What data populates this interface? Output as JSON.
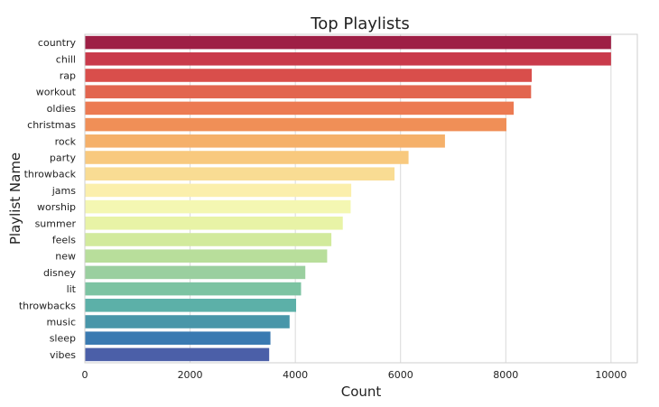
{
  "chart_data": {
    "type": "bar",
    "orientation": "horizontal",
    "title": "Top Playlists",
    "xlabel": "Count",
    "ylabel": "Playlist Name",
    "xlim": [
      0,
      10500
    ],
    "xticks": [
      0,
      2000,
      4000,
      6000,
      8000,
      10000
    ],
    "xtick_labels": [
      "0",
      "2000",
      "4000",
      "6000",
      "8000",
      "10000"
    ],
    "grid": true,
    "categories": [
      "country",
      "chill",
      "rap",
      "workout",
      "oldies",
      "christmas",
      "rock",
      "party",
      "throwback",
      "jams",
      "worship",
      "summer",
      "feels",
      "new",
      "disney",
      "lit",
      "throwbacks",
      "music",
      "sleep",
      "vibes"
    ],
    "values": [
      10000,
      10000,
      8493,
      8481,
      8150,
      8012,
      6844,
      6152,
      5885,
      5063,
      5052,
      4902,
      4685,
      4605,
      4190,
      4109,
      4015,
      3891,
      3527,
      3503
    ],
    "colors": [
      "#9e1f45",
      "#c93a4b",
      "#d94e4b",
      "#e2654f",
      "#ec7a52",
      "#f08f57",
      "#f5b06a",
      "#f8c97e",
      "#f9dc93",
      "#fbefac",
      "#f4f7b2",
      "#e8f3a6",
      "#d2ea9c",
      "#b8de9b",
      "#9acf9f",
      "#7cc3a2",
      "#5cb0a8",
      "#4896a9",
      "#3a7ab1",
      "#4b5fa8"
    ]
  }
}
